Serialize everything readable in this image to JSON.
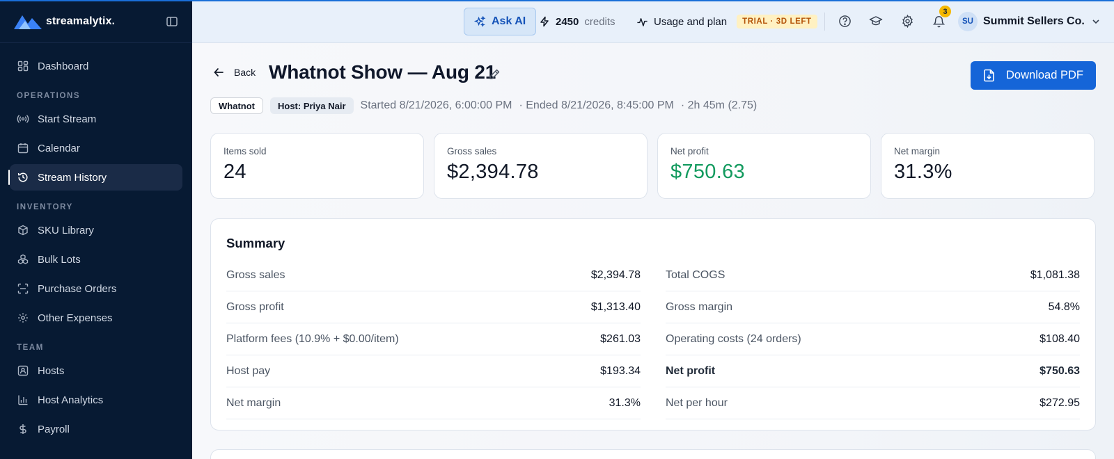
{
  "brand": {
    "name": "streamalytix."
  },
  "sidebar": {
    "items_top": [
      {
        "label": "Dashboard",
        "icon": "grid-icon"
      }
    ],
    "sections": [
      {
        "title": "OPERATIONS",
        "items": [
          {
            "label": "Start Stream",
            "icon": "broadcast-icon"
          },
          {
            "label": "Calendar",
            "icon": "calendar-icon"
          },
          {
            "label": "Stream History",
            "icon": "history-icon",
            "active": true
          }
        ]
      },
      {
        "title": "INVENTORY",
        "items": [
          {
            "label": "SKU Library",
            "icon": "box-icon"
          },
          {
            "label": "Bulk Lots",
            "icon": "boxes-icon"
          },
          {
            "label": "Purchase Orders",
            "icon": "scan-icon"
          },
          {
            "label": "Other Expenses",
            "icon": "gear-icon"
          }
        ]
      },
      {
        "title": "TEAM",
        "items": [
          {
            "label": "Hosts",
            "icon": "id-card-icon"
          },
          {
            "label": "Host Analytics",
            "icon": "bar-chart-icon"
          },
          {
            "label": "Payroll",
            "icon": "dollar-icon"
          }
        ]
      }
    ]
  },
  "topbar": {
    "ask_ai": "Ask AI",
    "credits_value": "2450",
    "credits_label": "credits",
    "usage_label": "Usage and plan",
    "trial_badge": "TRIAL · 3D LEFT",
    "notification_count": "3",
    "avatar_initials": "SU",
    "account_name": "Summit Sellers Co."
  },
  "page": {
    "back_label": "Back",
    "title": "Whatnot Show — Aug 21",
    "download_label": "Download PDF",
    "platform_chip": "Whatnot",
    "host_chip": "Host: Priya Nair",
    "started": "Started 8/21/2026, 6:00:00 PM",
    "ended": "· Ended 8/21/2026, 8:45:00 PM",
    "duration": "· 2h 45m (2.75)"
  },
  "stats": [
    {
      "label": "Items sold",
      "value": "24"
    },
    {
      "label": "Gross sales",
      "value": "$2,394.78"
    },
    {
      "label": "Net profit",
      "value": "$750.63",
      "color": "#129a5e"
    },
    {
      "label": "Net margin",
      "value": "31.3%"
    }
  ],
  "summary": {
    "title": "Summary",
    "left": [
      {
        "k": "Gross sales",
        "v": "$2,394.78"
      },
      {
        "k": "Gross profit",
        "v": "$1,313.40"
      },
      {
        "k": "Platform fees (10.9% + $0.00/item)",
        "v": "$261.03"
      },
      {
        "k": "Host pay",
        "v": "$193.34"
      },
      {
        "k": "Net margin",
        "v": "31.3%"
      }
    ],
    "right": [
      {
        "k": "Total COGS",
        "v": "$1,081.38"
      },
      {
        "k": "Gross margin",
        "v": "54.8%"
      },
      {
        "k": "Operating costs (24 orders)",
        "v": "$108.40"
      },
      {
        "k": "Net profit",
        "v": "$750.63",
        "bold": true
      },
      {
        "k": "Net per hour",
        "v": "$272.95"
      }
    ]
  }
}
